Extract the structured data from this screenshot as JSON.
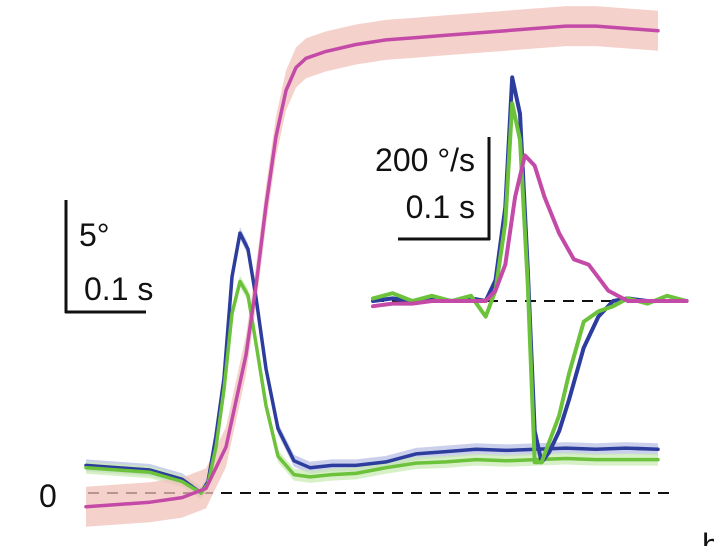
{
  "chart_data": [
    {
      "type": "line",
      "panel": "main",
      "title": "",
      "xlabel": "",
      "ylabel": "",
      "zero_label": "0",
      "scale_bar": {
        "y_label": "5°",
        "x_label": "0.1 s"
      },
      "series": [
        {
          "color": "#2c3d9e",
          "band_color": "#b8bfe6",
          "x": [
            0.0,
            0.032,
            0.064,
            0.096,
            0.115,
            0.122,
            0.13,
            0.138,
            0.146,
            0.154,
            0.162,
            0.17,
            0.18,
            0.192,
            0.208,
            0.224,
            0.246,
            0.27,
            0.3,
            0.33,
            0.36,
            0.39,
            0.42,
            0.45,
            0.48,
            0.51,
            0.54,
            0.572
          ],
          "values": [
            1.2,
            1.1,
            1.0,
            0.6,
            0.0,
            0.5,
            2.5,
            5.0,
            9.4,
            11.3,
            10.6,
            8.5,
            5.4,
            2.8,
            1.4,
            1.1,
            1.2,
            1.2,
            1.35,
            1.7,
            1.8,
            1.9,
            1.85,
            1.9,
            1.95,
            1.9,
            1.95,
            1.9
          ]
        },
        {
          "color": "#6cc23a",
          "band_color": "#c9ebb4",
          "x": [
            0.0,
            0.032,
            0.064,
            0.096,
            0.115,
            0.122,
            0.13,
            0.138,
            0.146,
            0.154,
            0.162,
            0.17,
            0.18,
            0.192,
            0.208,
            0.224,
            0.246,
            0.27,
            0.3,
            0.33,
            0.36,
            0.39,
            0.42,
            0.45,
            0.48,
            0.51,
            0.54,
            0.572
          ],
          "values": [
            1.1,
            1.0,
            0.9,
            0.5,
            0.0,
            0.4,
            2.0,
            4.5,
            7.8,
            9.2,
            8.6,
            6.5,
            3.8,
            1.6,
            0.8,
            0.7,
            0.8,
            0.85,
            1.1,
            1.3,
            1.35,
            1.45,
            1.4,
            1.45,
            1.5,
            1.45,
            1.45,
            1.45
          ]
        },
        {
          "color": "#c44aa8",
          "band_color": "#f2c1b9",
          "x": [
            0.0,
            0.032,
            0.064,
            0.096,
            0.12,
            0.14,
            0.16,
            0.17,
            0.18,
            0.19,
            0.2,
            0.21,
            0.22,
            0.24,
            0.27,
            0.3,
            0.33,
            0.36,
            0.39,
            0.42,
            0.45,
            0.48,
            0.51,
            0.54,
            0.572
          ],
          "values": [
            -0.6,
            -0.5,
            -0.4,
            -0.2,
            0.2,
            2.0,
            6.0,
            9.0,
            12.5,
            15.5,
            17.5,
            18.5,
            18.9,
            19.2,
            19.5,
            19.7,
            19.8,
            19.9,
            20.0,
            20.1,
            20.2,
            20.3,
            20.3,
            20.2,
            20.1
          ]
        }
      ]
    },
    {
      "type": "line",
      "panel": "inset",
      "title": "",
      "xlabel": "",
      "ylabel": "",
      "scale_bar": {
        "y_label": "200 °/s",
        "x_label": "0.1 s"
      },
      "series": [
        {
          "color": "#2c3d9e",
          "x": [
            0.0,
            0.02,
            0.04,
            0.06,
            0.08,
            0.1,
            0.115,
            0.125,
            0.135,
            0.142,
            0.15,
            0.158,
            0.165,
            0.172,
            0.18,
            0.19,
            0.2,
            0.215,
            0.23,
            0.245,
            0.26,
            0.28,
            0.3,
            0.32
          ],
          "values": [
            0,
            5,
            0,
            5,
            0,
            5,
            0,
            40,
            180,
            430,
            360,
            60,
            -250,
            -310,
            -290,
            -250,
            -190,
            -90,
            -30,
            0,
            5,
            0,
            0,
            0
          ]
        },
        {
          "color": "#6cc23a",
          "x": [
            0.0,
            0.02,
            0.04,
            0.06,
            0.08,
            0.1,
            0.115,
            0.125,
            0.135,
            0.142,
            0.15,
            0.158,
            0.165,
            0.172,
            0.18,
            0.19,
            0.2,
            0.215,
            0.23,
            0.245,
            0.26,
            0.28,
            0.3,
            0.32
          ],
          "values": [
            5,
            15,
            0,
            10,
            0,
            10,
            -30,
            20,
            150,
            380,
            310,
            30,
            -310,
            -310,
            -270,
            -220,
            -140,
            -40,
            -20,
            -10,
            5,
            -5,
            10,
            0
          ]
        },
        {
          "color": "#c44aa8",
          "x": [
            0.0,
            0.02,
            0.04,
            0.06,
            0.08,
            0.1,
            0.115,
            0.125,
            0.135,
            0.145,
            0.155,
            0.165,
            0.175,
            0.19,
            0.205,
            0.22,
            0.24,
            0.26,
            0.28,
            0.3,
            0.32
          ],
          "values": [
            -10,
            -5,
            -5,
            0,
            0,
            0,
            0,
            20,
            70,
            200,
            280,
            260,
            200,
            130,
            80,
            70,
            20,
            0,
            0,
            0,
            0
          ]
        }
      ]
    }
  ],
  "edge_glyph": "h"
}
